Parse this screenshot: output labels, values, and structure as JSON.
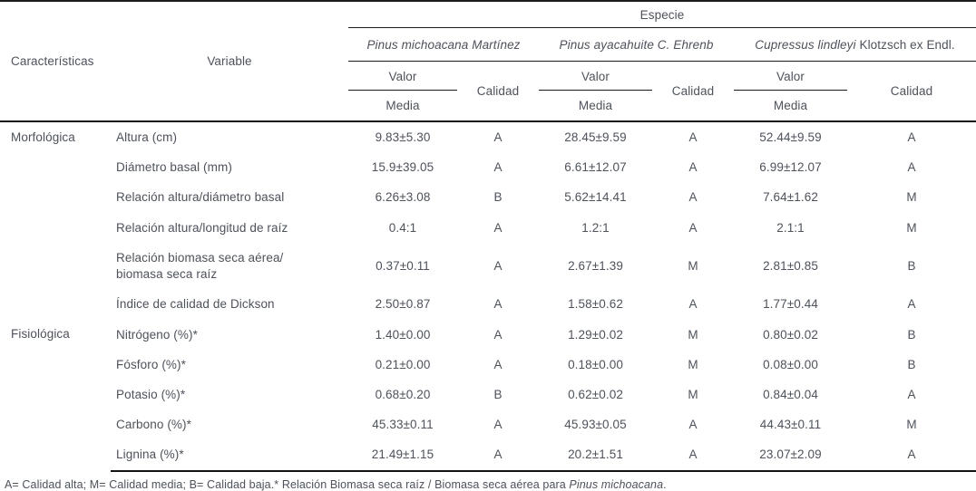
{
  "table": {
    "header": {
      "caracteristicas": "Características",
      "variable": "Variable",
      "especie": "Especie",
      "valor_label": "Valor",
      "media_label": "Media",
      "calidad_label": "Calidad",
      "species": [
        {
          "italic": "Pinus michoacana Martínez",
          "regular": ""
        },
        {
          "italic": "Pinus ayacahuite C. Ehrenb",
          "regular": ""
        },
        {
          "italic": "Cupressus lindleyi",
          "regular": " Klotzsch ex Endl."
        }
      ]
    },
    "body": {
      "sections": [
        {
          "label": "Morfológica",
          "start": 0,
          "span": 5,
          "offset": false
        },
        {
          "label": "Fisiológica",
          "start": 5,
          "span": 6,
          "offset": true
        }
      ],
      "rows": [
        {
          "variable": "Altura (cm)",
          "cells": [
            "9.83±5.30",
            "A",
            "28.45±9.59",
            "A",
            "52.44±9.59",
            "A"
          ]
        },
        {
          "variable": "Diámetro basal (mm)",
          "cells": [
            "15.9±39.05",
            "A",
            "6.61±12.07",
            "A",
            "6.99±12.07",
            "A"
          ]
        },
        {
          "variable": "Relación altura/diámetro basal",
          "cells": [
            "6.26±3.08",
            "B",
            "5.62±14.41",
            "A",
            "7.64±1.62",
            "M"
          ]
        },
        {
          "variable": "Relación altura/longitud de raíz",
          "cells": [
            "0.4:1",
            "A",
            "1.2:1",
            "A",
            "2.1:1",
            "M"
          ]
        },
        {
          "variable": "Relación biomasa seca aérea/\nbiomasa seca raíz",
          "cells": [
            "0.37±0.11",
            "A",
            "2.67±1.39",
            "M",
            "2.81±0.85",
            "B"
          ]
        },
        {
          "variable": "Índice de calidad de Dickson",
          "cells": [
            "2.50±0.87",
            "A",
            "1.58±0.62",
            "A",
            "1.77±0.44",
            "A"
          ]
        },
        {
          "variable": "Nitrógeno (%)*",
          "cells": [
            "1.40±0.00",
            "A",
            "1.29±0.02",
            "M",
            "0.80±0.02",
            "B"
          ]
        },
        {
          "variable": "Fósforo (%)*",
          "cells": [
            "0.21±0.00",
            "A",
            "0.18±0.00",
            "M",
            "0.08±0.00",
            "B"
          ]
        },
        {
          "variable": "Potasio (%)*",
          "cells": [
            "0.68±0.20",
            "B",
            "0.62±0.02",
            "M",
            "0.84±0.04",
            "A"
          ]
        },
        {
          "variable": "Carbono (%)*",
          "cells": [
            "45.33±0.11",
            "A",
            "45.93±0.05",
            "A",
            "44.43±0.11",
            "M"
          ]
        },
        {
          "variable": "Lignina (%)*",
          "cells": [
            "21.49±1.15",
            "A",
            "20.2±1.51",
            "A",
            "23.07±2.09",
            "A"
          ]
        }
      ]
    },
    "footnote": {
      "text": "A= Calidad alta; M= Calidad media; B= Calidad baja.* Relación Biomasa seca raíz / Biomasa seca aérea para ",
      "italic": "Pinus michoacana",
      "suffix": "."
    },
    "colors": {
      "text": "#4d525b",
      "rule": "#1b1b1b"
    }
  }
}
